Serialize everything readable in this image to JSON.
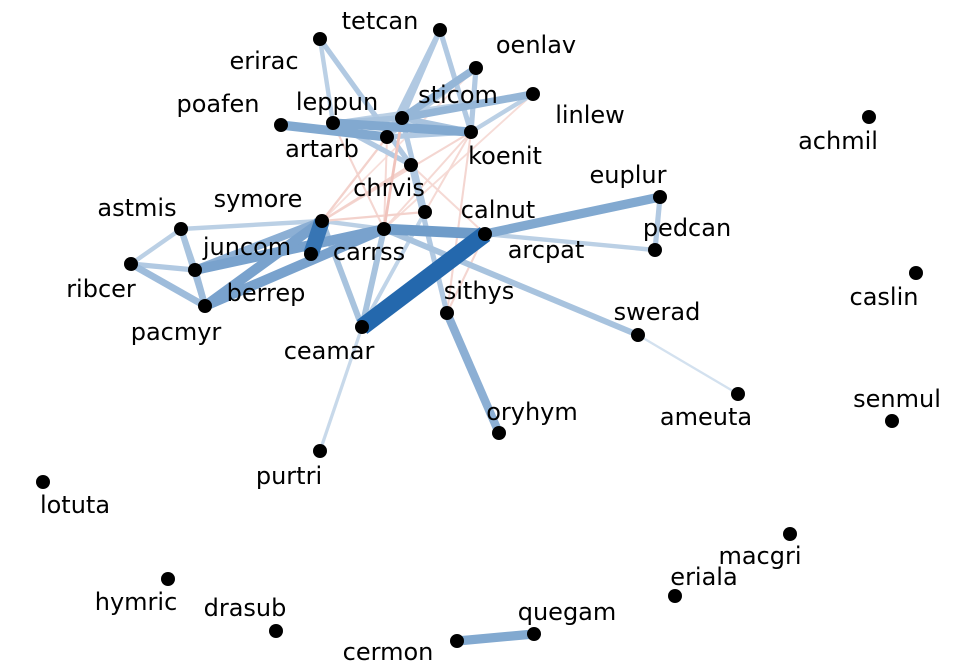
{
  "network": {
    "nodes": [
      {
        "id": "tetcan",
        "label": "tetcan"
      },
      {
        "id": "oenlav",
        "label": "oenlav"
      },
      {
        "id": "erirac",
        "label": "erirac"
      },
      {
        "id": "sticom",
        "label": "sticom"
      },
      {
        "id": "linlew",
        "label": "linlew"
      },
      {
        "id": "poafen",
        "label": "poafen"
      },
      {
        "id": "leppun",
        "label": "leppun"
      },
      {
        "id": "koenit",
        "label": "koenit"
      },
      {
        "id": "artarb",
        "label": "artarb"
      },
      {
        "id": "achmil",
        "label": "achmil"
      },
      {
        "id": "chrvis",
        "label": "chrvis"
      },
      {
        "id": "euplur",
        "label": "euplur"
      },
      {
        "id": "symore",
        "label": "symore"
      },
      {
        "id": "astmis",
        "label": "astmis"
      },
      {
        "id": "calnut",
        "label": "calnut"
      },
      {
        "id": "juncom",
        "label": "juncom"
      },
      {
        "id": "carrss",
        "label": "carrss"
      },
      {
        "id": "arcpat",
        "label": "arcpat"
      },
      {
        "id": "pedcan",
        "label": "pedcan"
      },
      {
        "id": "ribcer",
        "label": "ribcer"
      },
      {
        "id": "berrep",
        "label": "berrep"
      },
      {
        "id": "caslin",
        "label": "caslin"
      },
      {
        "id": "sithys",
        "label": "sithys"
      },
      {
        "id": "pacmyr",
        "label": "pacmyr"
      },
      {
        "id": "swerad",
        "label": "swerad"
      },
      {
        "id": "ceamar",
        "label": "ceamar"
      },
      {
        "id": "ameuta",
        "label": "ameuta"
      },
      {
        "id": "senmul",
        "label": "senmul"
      },
      {
        "id": "oryhym",
        "label": "oryhym"
      },
      {
        "id": "purtri",
        "label": "purtri"
      },
      {
        "id": "lotuta",
        "label": "lotuta"
      },
      {
        "id": "macgri",
        "label": "macgri"
      },
      {
        "id": "eriala",
        "label": "eriala"
      },
      {
        "id": "hymric",
        "label": "hymric"
      },
      {
        "id": "drasub",
        "label": "drasub"
      },
      {
        "id": "quegam",
        "label": "quegam"
      },
      {
        "id": "cermon",
        "label": "cermon"
      }
    ],
    "edges": [
      {
        "source": "ceamar",
        "target": "arcpat",
        "weight": 0.95
      },
      {
        "source": "carrss",
        "target": "arcpat",
        "weight": 0.55
      },
      {
        "source": "arcpat",
        "target": "euplur",
        "weight": 0.45
      },
      {
        "source": "juncom",
        "target": "carrss",
        "weight": 0.5
      },
      {
        "source": "pacmyr",
        "target": "carrss",
        "weight": 0.5
      },
      {
        "source": "pacmyr",
        "target": "symore",
        "weight": 0.5
      },
      {
        "source": "berrep",
        "target": "symore",
        "weight": 0.85
      },
      {
        "source": "juncom",
        "target": "symore",
        "weight": 0.4
      },
      {
        "source": "sithys",
        "target": "oryhym",
        "weight": 0.4
      },
      {
        "source": "cermon",
        "target": "quegam",
        "weight": 0.45
      },
      {
        "source": "leppun",
        "target": "koenit",
        "weight": 0.45
      },
      {
        "source": "poafen",
        "target": "artarb",
        "weight": 0.45
      },
      {
        "source": "sticom",
        "target": "linlew",
        "weight": 0.35
      },
      {
        "source": "sticom",
        "target": "oenlav",
        "weight": 0.35
      },
      {
        "source": "ribcer",
        "target": "pacmyr",
        "weight": 0.3
      },
      {
        "source": "ribcer",
        "target": "juncom",
        "weight": 0.2
      },
      {
        "source": "ribcer",
        "target": "astmis",
        "weight": 0.15
      },
      {
        "source": "astmis",
        "target": "juncom",
        "weight": 0.25
      },
      {
        "source": "astmis",
        "target": "pacmyr",
        "weight": 0.25
      },
      {
        "source": "juncom",
        "target": "pacmyr",
        "weight": 0.3
      },
      {
        "source": "astmis",
        "target": "symore",
        "weight": 0.15
      },
      {
        "source": "carrss",
        "target": "swerad",
        "weight": 0.25
      },
      {
        "source": "arcpat",
        "target": "pedcan",
        "weight": 0.15
      },
      {
        "source": "euplur",
        "target": "pedcan",
        "weight": 0.2
      },
      {
        "source": "ceamar",
        "target": "purtri",
        "weight": 0.08
      },
      {
        "source": "ceamar",
        "target": "symore",
        "weight": 0.25
      },
      {
        "source": "ceamar",
        "target": "carrss",
        "weight": 0.25
      },
      {
        "source": "sithys",
        "target": "chrvis",
        "weight": 0.2
      },
      {
        "source": "tetcan",
        "target": "sticom",
        "weight": 0.2
      },
      {
        "source": "tetcan",
        "target": "koenit",
        "weight": 0.2
      },
      {
        "source": "tetcan",
        "target": "artarb",
        "weight": 0.2
      },
      {
        "source": "erirac",
        "target": "chrvis",
        "weight": 0.2
      },
      {
        "source": "erirac",
        "target": "leppun",
        "weight": 0.15
      },
      {
        "source": "oenlav",
        "target": "koenit",
        "weight": 0.2
      },
      {
        "source": "oenlav",
        "target": "artarb",
        "weight": 0.15
      },
      {
        "source": "linlew",
        "target": "koenit",
        "weight": 0.15
      },
      {
        "source": "linlew",
        "target": "leppun",
        "weight": 0.15
      },
      {
        "source": "sticom",
        "target": "koenit",
        "weight": 0.25
      },
      {
        "source": "sticom",
        "target": "leppun",
        "weight": 0.25
      },
      {
        "source": "sticom",
        "target": "calnut",
        "weight": 0.2
      },
      {
        "source": "leppun",
        "target": "chrvis",
        "weight": 0.2
      },
      {
        "source": "artarb",
        "target": "koenit",
        "weight": 0.2
      },
      {
        "source": "chrvis",
        "target": "calnut",
        "weight": 0.15
      },
      {
        "source": "calnut",
        "target": "ceamar",
        "weight": 0.12
      },
      {
        "source": "carrss",
        "target": "symore",
        "weight": 0.15
      },
      {
        "source": "swerad",
        "target": "ameuta",
        "weight": 0.02
      },
      {
        "source": "sticom",
        "target": "carrss",
        "weight": -0.25
      },
      {
        "source": "artarb",
        "target": "symore",
        "weight": -0.15
      },
      {
        "source": "koenit",
        "target": "symore",
        "weight": -0.12
      },
      {
        "source": "chrvis",
        "target": "symore",
        "weight": -0.15
      },
      {
        "source": "calnut",
        "target": "symore",
        "weight": -0.15
      },
      {
        "source": "koenit",
        "target": "sithys",
        "weight": -0.12
      },
      {
        "source": "leppun",
        "target": "carrss",
        "weight": -0.12
      },
      {
        "source": "koenit",
        "target": "carrss",
        "weight": -0.1
      },
      {
        "source": "artarb",
        "target": "carrss",
        "weight": -0.1
      },
      {
        "source": "arcpat",
        "target": "sithys",
        "weight": -0.12
      },
      {
        "source": "chrvis",
        "target": "arcpat",
        "weight": -0.1
      },
      {
        "source": "koenit",
        "target": "calnut",
        "weight": -0.1
      },
      {
        "source": "oenlav",
        "target": "symore",
        "weight": -0.06
      },
      {
        "source": "linlew",
        "target": "carrss",
        "weight": -0.08
      }
    ]
  }
}
